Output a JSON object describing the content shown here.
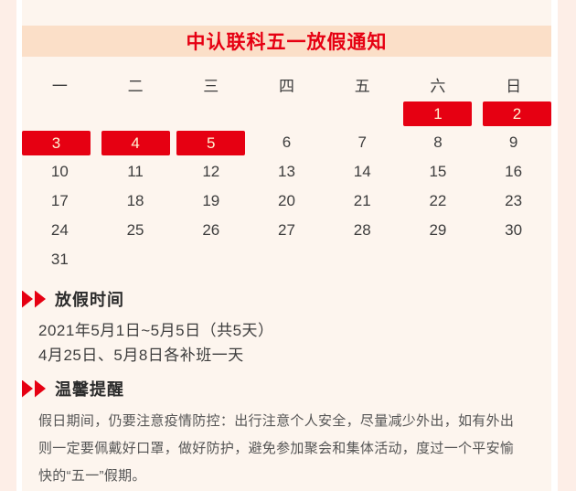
{
  "title": "中认联科五一放假通知",
  "calendar": {
    "weekdays": [
      "一",
      "二",
      "三",
      "四",
      "五",
      "六",
      "日"
    ],
    "weeks": [
      [
        "",
        "",
        "",
        "",
        "",
        "1",
        "2"
      ],
      [
        "3",
        "4",
        "5",
        "6",
        "7",
        "8",
        "9"
      ],
      [
        "10",
        "11",
        "12",
        "13",
        "14",
        "15",
        "16"
      ],
      [
        "17",
        "18",
        "19",
        "20",
        "21",
        "22",
        "23"
      ],
      [
        "24",
        "25",
        "26",
        "27",
        "28",
        "29",
        "30"
      ],
      [
        "31",
        "",
        "",
        "",
        "",
        "",
        ""
      ]
    ],
    "holiday_days": [
      "1",
      "2",
      "3",
      "4",
      "5"
    ]
  },
  "sections": {
    "holiday": {
      "heading": "放假时间",
      "lines": [
        "2021年5月1日~5月5日（共5天）",
        "4月25日、5月8日各补班一天"
      ]
    },
    "reminder": {
      "heading": "温馨提醒",
      "lines": [
        "假日期间，仍要注意疫情防控：出行注意个人安全，尽量减少外出，如有外出",
        "则一定要佩戴好口罩，做好防护，避免参加聚会和集体活动，度过一个平安愉",
        "快的“五一”假期。"
      ]
    }
  },
  "icons": {
    "section_marker": "double-right-arrow-icon"
  },
  "colors": {
    "page_bg": "#fdeee7",
    "card_bg": "#ffffff",
    "panel_bg": "#fdf5ee",
    "title_bar_bg": "#fbdfc8",
    "accent_red": "#e60012",
    "holiday_day_text": "#fff3d2",
    "day_text": "#3d3d3d",
    "heading_text": "#2b2b2b",
    "body_text": "#555555"
  }
}
